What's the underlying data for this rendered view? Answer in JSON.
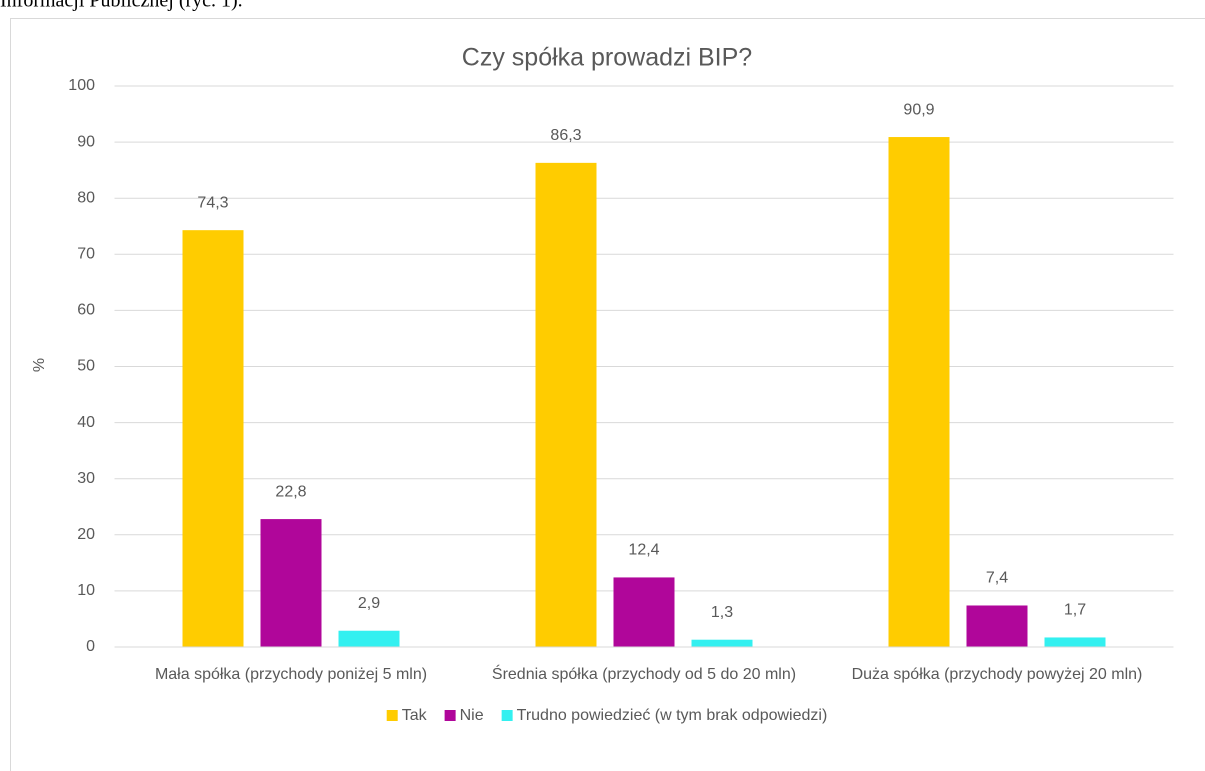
{
  "text_above": "Informacji Publicznej (ryc. 1).",
  "chart_data": {
    "type": "bar",
    "title": "Czy spółka prowadzi BIP?",
    "y_label": "%",
    "categories": [
      "Mała spółka (przychody poniżej 5 mln)",
      "Średnia spółka (przychody od 5 do 20 mln)",
      "Duża spółka (przychody powyżej 20 mln)"
    ],
    "series": [
      {
        "name": "Tak",
        "color": "#ffcc00",
        "values": [
          74.3,
          86.3,
          90.9
        ],
        "value_labels": [
          "74,3",
          "86,3",
          "90,9"
        ]
      },
      {
        "name": "Nie",
        "color": "#b0069a",
        "values": [
          22.8,
          12.4,
          7.4
        ],
        "value_labels": [
          "22,8",
          "12,4",
          "7,4"
        ]
      },
      {
        "name": "Trudno powiedzieć (w tym brak odpowiedzi)",
        "color": "#33f0f0",
        "values": [
          2.9,
          1.3,
          1.7
        ],
        "value_labels": [
          "2,9",
          "1,3",
          "1,7"
        ]
      }
    ],
    "ylim": [
      0,
      100
    ],
    "yticks": [
      0,
      10,
      20,
      30,
      40,
      50,
      60,
      70,
      80,
      90,
      100
    ],
    "grid": true,
    "legend": "bottom"
  }
}
